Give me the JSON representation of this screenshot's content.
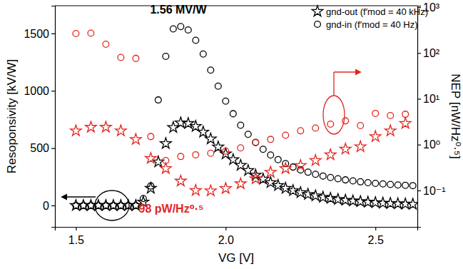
{
  "chart_data": {
    "type": "scatter",
    "x_label": "VG [V]",
    "y_label": "Resoponsivity [kV/W]",
    "y2_label": "NEP [nW/Hz⁰·⁵]",
    "xlim": [
      1.43,
      2.64
    ],
    "ylim": [
      -187,
      1742
    ],
    "y2lim": [
      0.016,
      1075
    ],
    "xticks": [
      1.5,
      {
        "value": 2,
        "label": "2.0"
      },
      2.5
    ],
    "yticks": [
      0,
      500,
      1000,
      1500
    ],
    "y2ticks": [
      {
        "value": 0.1,
        "label": "10⁻¹"
      },
      {
        "value": 1,
        "label": "10⁰"
      },
      {
        "value": 10,
        "label": "10¹"
      },
      {
        "value": 100,
        "label": "10²"
      },
      {
        "value": 1000,
        "label": "10³"
      }
    ],
    "log": "y2",
    "grid": false,
    "legend": "upper right",
    "annotations": [
      {
        "text": "1.56 MV/W",
        "color": "#000000"
      },
      {
        "text": "98 pW/Hz⁰·⁵",
        "color": "#e3261f"
      }
    ],
    "series": [
      {
        "name": "gnd-out (f′mod = 40 kHz)",
        "color": "#000000",
        "marker": "star",
        "axis": "y",
        "x": [
          1.5,
          1.525,
          1.55,
          1.575,
          1.6,
          1.625,
          1.65,
          1.675,
          1.7,
          1.725,
          1.75,
          1.775,
          1.8,
          1.825,
          1.85,
          1.875,
          1.9,
          1.925,
          1.95,
          1.975,
          2.0,
          2.025,
          2.05,
          2.075,
          2.1,
          2.125,
          2.15,
          2.175,
          2.2,
          2.225,
          2.25,
          2.275,
          2.3,
          2.325,
          2.35,
          2.375,
          2.4,
          2.425,
          2.45,
          2.475,
          2.5,
          2.525,
          2.55,
          2.575,
          2.6,
          2.625
        ],
        "values": [
          0,
          0,
          0,
          0,
          0,
          0,
          0,
          0,
          0,
          30,
          150,
          380,
          540,
          680,
          720,
          715,
          690,
          640,
          580,
          510,
          450,
          400,
          350,
          305,
          265,
          230,
          200,
          175,
          150,
          130,
          112,
          97,
          84,
          72,
          62,
          53,
          46,
          40,
          34,
          29,
          25,
          21,
          18,
          15,
          13,
          11
        ]
      },
      {
        "name": "gnd-in (f′mod = 40 Hz)",
        "color": "#000000",
        "marker": "circle",
        "axis": "y",
        "x": [
          1.5,
          1.525,
          1.55,
          1.575,
          1.6,
          1.625,
          1.65,
          1.675,
          1.7,
          1.725,
          1.75,
          1.775,
          1.8,
          1.825,
          1.85,
          1.875,
          1.9,
          1.925,
          1.95,
          1.975,
          2.0,
          2.025,
          2.05,
          2.075,
          2.1,
          2.125,
          2.15,
          2.175,
          2.2,
          2.225,
          2.25,
          2.275,
          2.3,
          2.325,
          2.35,
          2.375,
          2.4,
          2.425,
          2.45,
          2.475,
          2.5,
          2.525,
          2.55,
          2.575,
          2.6,
          2.625
        ],
        "values": [
          0,
          0,
          0,
          0,
          0,
          0,
          0,
          0,
          0,
          60,
          170,
          920,
          1300,
          1540,
          1560,
          1530,
          1440,
          1320,
          1180,
          1040,
          910,
          800,
          700,
          620,
          550,
          490,
          440,
          400,
          365,
          335,
          310,
          290,
          272,
          257,
          244,
          233,
          223,
          214,
          206,
          199,
          193,
          188,
          183,
          179,
          176,
          173
        ]
      },
      {
        "color": "#e3261f",
        "marker": "circle",
        "axis": "y2",
        "x": [
          1.5,
          1.55,
          1.6,
          1.65,
          1.7,
          1.75,
          1.8,
          1.85,
          1.9,
          1.95,
          2.0,
          2.05,
          2.1,
          2.15,
          2.2,
          2.25,
          2.3,
          2.35,
          2.4,
          2.45,
          2.5,
          2.55,
          2.6
        ],
        "values": [
          265,
          270,
          155,
          80,
          76,
          1.5,
          0.45,
          0.55,
          0.6,
          0.65,
          0.72,
          0.85,
          1.1,
          1.3,
          1.6,
          2.0,
          2.3,
          2.8,
          3.3,
          2.6,
          4.8,
          4.3,
          4.6
        ]
      },
      {
        "color": "#e3261f",
        "marker": "star",
        "axis": "y2",
        "x": [
          1.5,
          1.55,
          1.6,
          1.65,
          1.7,
          1.75,
          1.8,
          1.85,
          1.9,
          1.95,
          2.0,
          2.05,
          2.1,
          2.15,
          2.2,
          2.25,
          2.3,
          2.35,
          2.4,
          2.45,
          2.5,
          2.55,
          2.6
        ],
        "values": [
          2.0,
          2.4,
          2.4,
          2.0,
          1.3,
          0.5,
          0.3,
          0.16,
          0.1,
          0.098,
          0.11,
          0.14,
          0.18,
          0.25,
          0.3,
          0.35,
          0.45,
          0.6,
          0.8,
          0.9,
          1.5,
          2.0,
          2.9
        ]
      }
    ]
  }
}
